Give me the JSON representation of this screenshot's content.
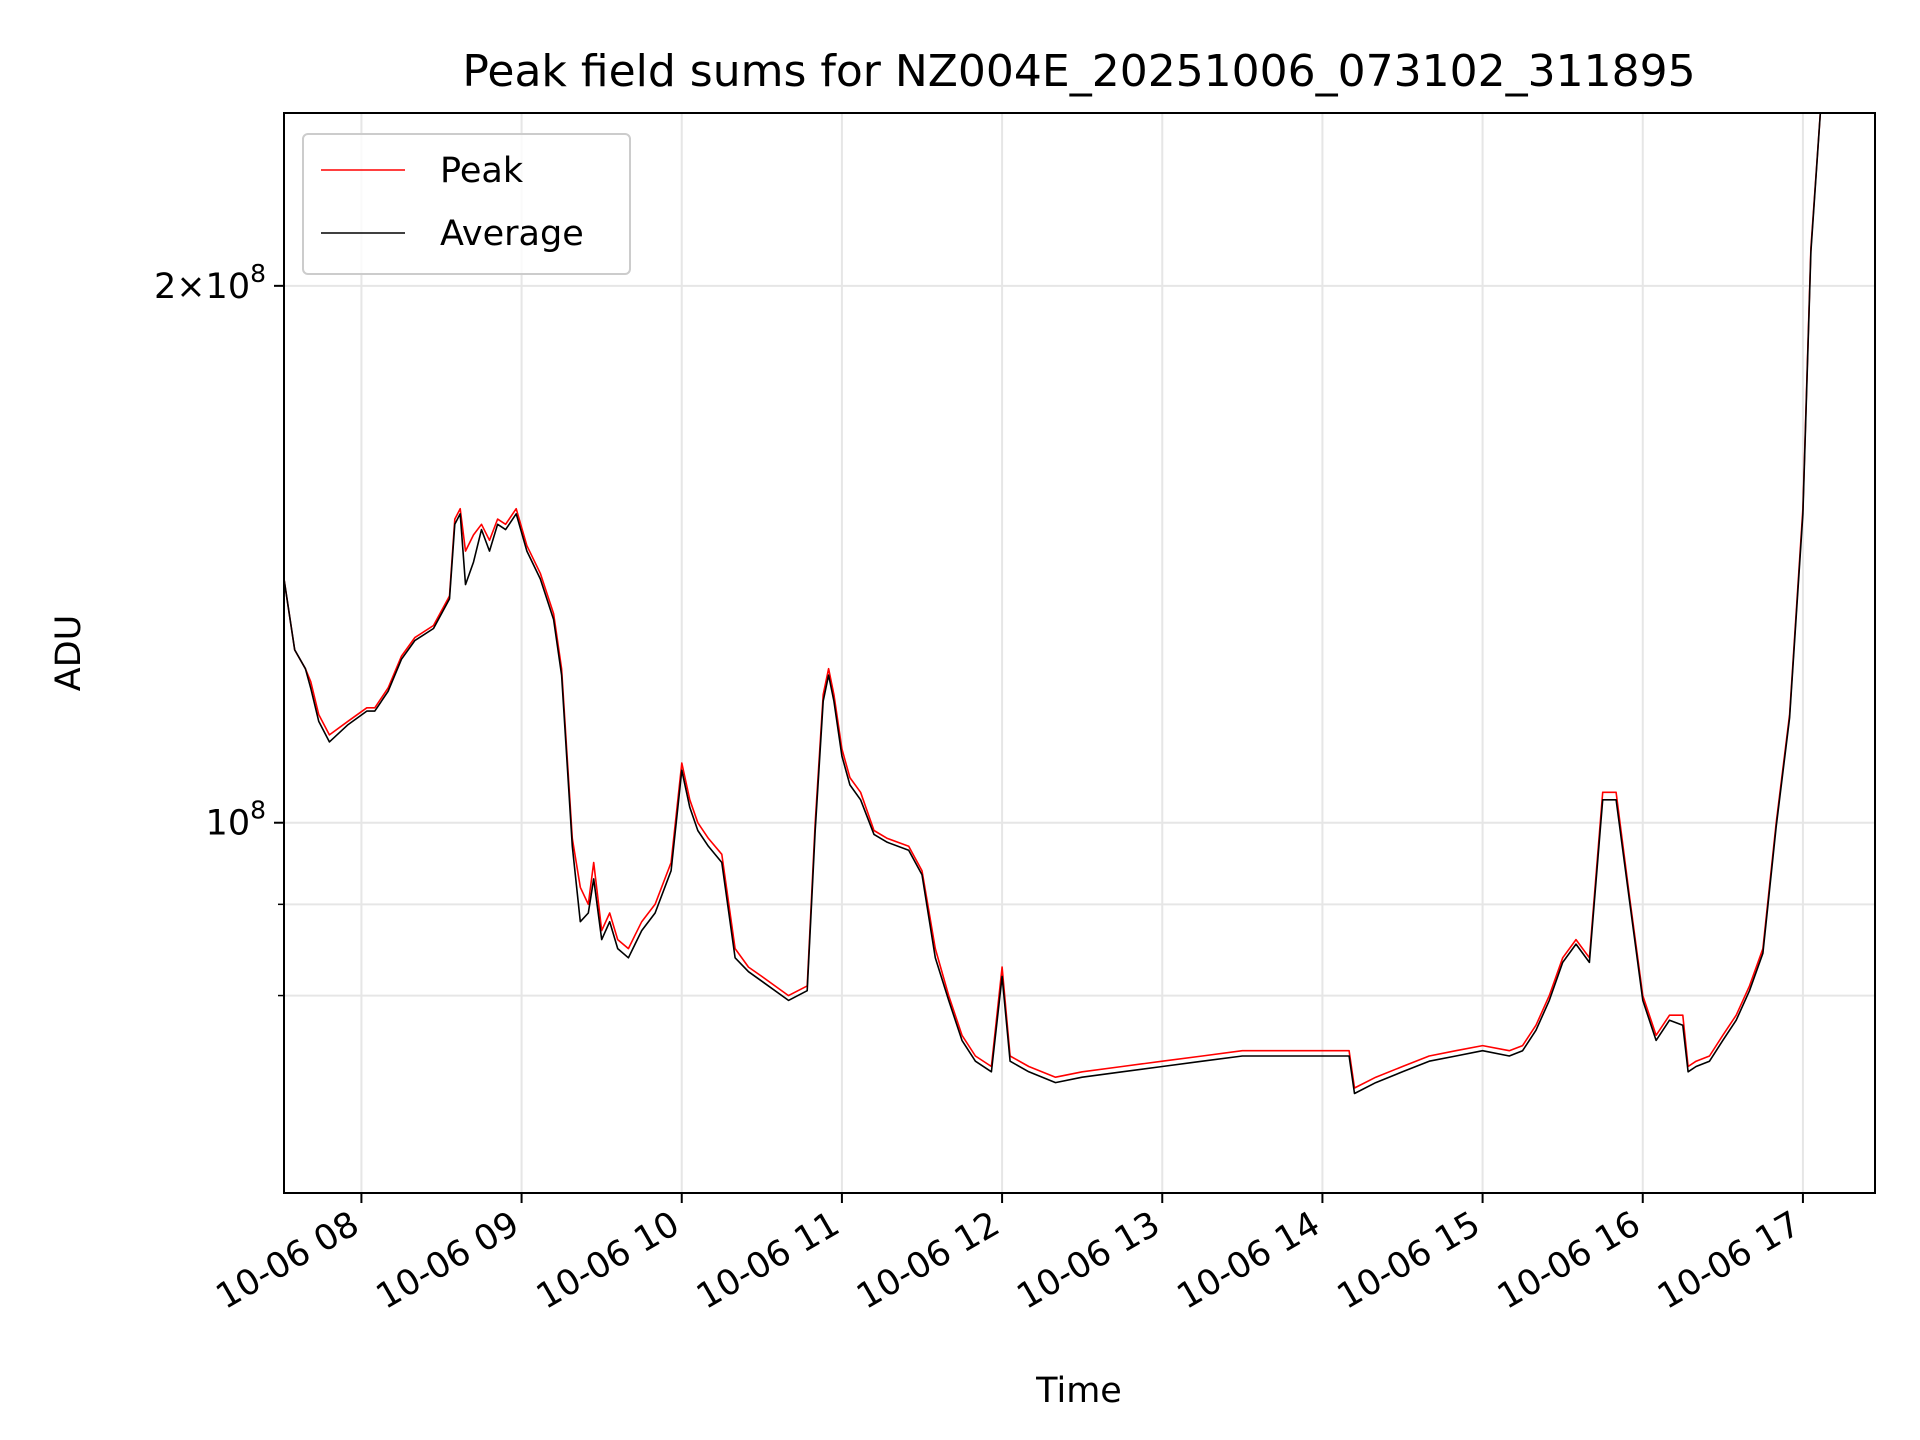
{
  "chart_data": {
    "type": "line",
    "title": "Peak field sums for NZ004E_20251006_073102_311895",
    "xlabel": "Time",
    "ylabel": "ADU",
    "yscale": "log",
    "ylim": [
      62000000,
      250000000
    ],
    "xlim": [
      "10-06 07:31",
      "10-06 17:27"
    ],
    "grid": true,
    "legend": {
      "placement": "top-left",
      "entries": [
        "Peak",
        "Average"
      ]
    },
    "x_ticks": [
      "10-06 08",
      "10-06 09",
      "10-06 10",
      "10-06 11",
      "10-06 12",
      "10-06 13",
      "10-06 14",
      "10-06 15",
      "10-06 16",
      "10-06 17"
    ],
    "y_ticks_major": [
      {
        "value": 100000000,
        "mantissa": "",
        "exponent": "8"
      },
      {
        "value": 200000000,
        "mantissa": "2",
        "exponent": "8"
      }
    ],
    "y_ticks_minor": [
      80000000,
      90000000,
      300000000
    ],
    "x": [
      "10-06 07:31",
      "10-06 07:35",
      "10-06 07:39",
      "10-06 07:41",
      "10-06 07:44",
      "10-06 07:48",
      "10-06 07:55",
      "10-06 08:02",
      "10-06 08:05",
      "10-06 08:10",
      "10-06 08:15",
      "10-06 08:20",
      "10-06 08:27",
      "10-06 08:33",
      "10-06 08:35",
      "10-06 08:37",
      "10-06 08:39",
      "10-06 08:42",
      "10-06 08:45",
      "10-06 08:48",
      "10-06 08:51",
      "10-06 08:54",
      "10-06 08:58",
      "10-06 09:02",
      "10-06 09:07",
      "10-06 09:12",
      "10-06 09:15",
      "10-06 09:19",
      "10-06 09:22",
      "10-06 09:25",
      "10-06 09:27",
      "10-06 09:30",
      "10-06 09:33",
      "10-06 09:36",
      "10-06 09:40",
      "10-06 09:45",
      "10-06 09:50",
      "10-06 09:56",
      "10-06 10:00",
      "10-06 10:03",
      "10-06 10:06",
      "10-06 10:10",
      "10-06 10:15",
      "10-06 10:20",
      "10-06 10:25",
      "10-06 10:30",
      "10-06 10:40",
      "10-06 10:47",
      "10-06 10:50",
      "10-06 10:53",
      "10-06 10:55",
      "10-06 10:57",
      "10-06 11:00",
      "10-06 11:03",
      "10-06 11:07",
      "10-06 11:12",
      "10-06 11:17",
      "10-06 11:25",
      "10-06 11:30",
      "10-06 11:35",
      "10-06 11:40",
      "10-06 11:45",
      "10-06 11:50",
      "10-06 11:56",
      "10-06 12:00",
      "10-06 12:03",
      "10-06 12:10",
      "10-06 12:20",
      "10-06 12:30",
      "10-06 12:45",
      "10-06 13:00",
      "10-06 13:15",
      "10-06 13:30",
      "10-06 13:45",
      "10-06 14:00",
      "10-06 14:10",
      "10-06 14:12",
      "10-06 14:20",
      "10-06 14:30",
      "10-06 14:40",
      "10-06 14:50",
      "10-06 15:00",
      "10-06 15:10",
      "10-06 15:15",
      "10-06 15:20",
      "10-06 15:25",
      "10-06 15:30",
      "10-06 15:35",
      "10-06 15:40",
      "10-06 15:45",
      "10-06 15:47",
      "10-06 15:50",
      "10-06 15:55",
      "10-06 16:00",
      "10-06 16:05",
      "10-06 16:10",
      "10-06 16:15",
      "10-06 16:17",
      "10-06 16:20",
      "10-06 16:25",
      "10-06 16:30",
      "10-06 16:35",
      "10-06 16:40",
      "10-06 16:45",
      "10-06 16:50",
      "10-06 16:55",
      "10-06 17:00",
      "10-06 17:03",
      "10-06 17:07"
    ],
    "series": [
      {
        "name": "Peak",
        "color": "#ff0000",
        "values": [
          137000000,
          125000000,
          122000000,
          120000000,
          115000000,
          112000000,
          114000000,
          116000000,
          116000000,
          119000000,
          124000000,
          127000000,
          129000000,
          134000000,
          148000000,
          150000000,
          142000000,
          145000000,
          147000000,
          144000000,
          148000000,
          147000000,
          150000000,
          143000000,
          138000000,
          131000000,
          122000000,
          98000000,
          92000000,
          90000000,
          95000000,
          87000000,
          89000000,
          86000000,
          85000000,
          88000000,
          90000000,
          95000000,
          108000000,
          103000000,
          100000000,
          98000000,
          96000000,
          85000000,
          83000000,
          82000000,
          80000000,
          81000000,
          100000000,
          118000000,
          122000000,
          118000000,
          110000000,
          106000000,
          104000000,
          99000000,
          98000000,
          97000000,
          94000000,
          85000000,
          80000000,
          76000000,
          74000000,
          73000000,
          83000000,
          74000000,
          73000000,
          72000000,
          72500000,
          73000000,
          73500000,
          74000000,
          74500000,
          74500000,
          74500000,
          74500000,
          71000000,
          72000000,
          73000000,
          74000000,
          74500000,
          75000000,
          74500000,
          75000000,
          77000000,
          80000000,
          84000000,
          86000000,
          84000000,
          104000000,
          104000000,
          104000000,
          91000000,
          80000000,
          76000000,
          78000000,
          78000000,
          73000000,
          73500000,
          74000000,
          76000000,
          78000000,
          81000000,
          85000000,
          100000000,
          115000000,
          150000000,
          210000000,
          256000000
        ]
      },
      {
        "name": "Average",
        "color": "#000000",
        "values": [
          137000000,
          125000000,
          122000000,
          119000000,
          114000000,
          111000000,
          113500000,
          115500000,
          115500000,
          118500000,
          123500000,
          126500000,
          128500000,
          133500000,
          147000000,
          149000000,
          136000000,
          140000000,
          146000000,
          142000000,
          147000000,
          146000000,
          149000000,
          142000000,
          137000000,
          130000000,
          121000000,
          97000000,
          88000000,
          89000000,
          93000000,
          86000000,
          88000000,
          85000000,
          84000000,
          87000000,
          89000000,
          94000000,
          107000000,
          102000000,
          99000000,
          97000000,
          95000000,
          84000000,
          82500000,
          81500000,
          79500000,
          80500000,
          99000000,
          117000000,
          121000000,
          117000000,
          109000000,
          105000000,
          103000000,
          98500000,
          97500000,
          96500000,
          93500000,
          84000000,
          79500000,
          75500000,
          73500000,
          72500000,
          82000000,
          73500000,
          72500000,
          71500000,
          72000000,
          72500000,
          73000000,
          73500000,
          74000000,
          74000000,
          74000000,
          74000000,
          70500000,
          71500000,
          72500000,
          73500000,
          74000000,
          74500000,
          74000000,
          74500000,
          76500000,
          79500000,
          83500000,
          85500000,
          83500000,
          103000000,
          103000000,
          103000000,
          90500000,
          79500000,
          75500000,
          77500000,
          77000000,
          72500000,
          73000000,
          73500000,
          75500000,
          77500000,
          80500000,
          84500000,
          99500000,
          114500000,
          149000000,
          209000000,
          256000000
        ]
      }
    ]
  }
}
